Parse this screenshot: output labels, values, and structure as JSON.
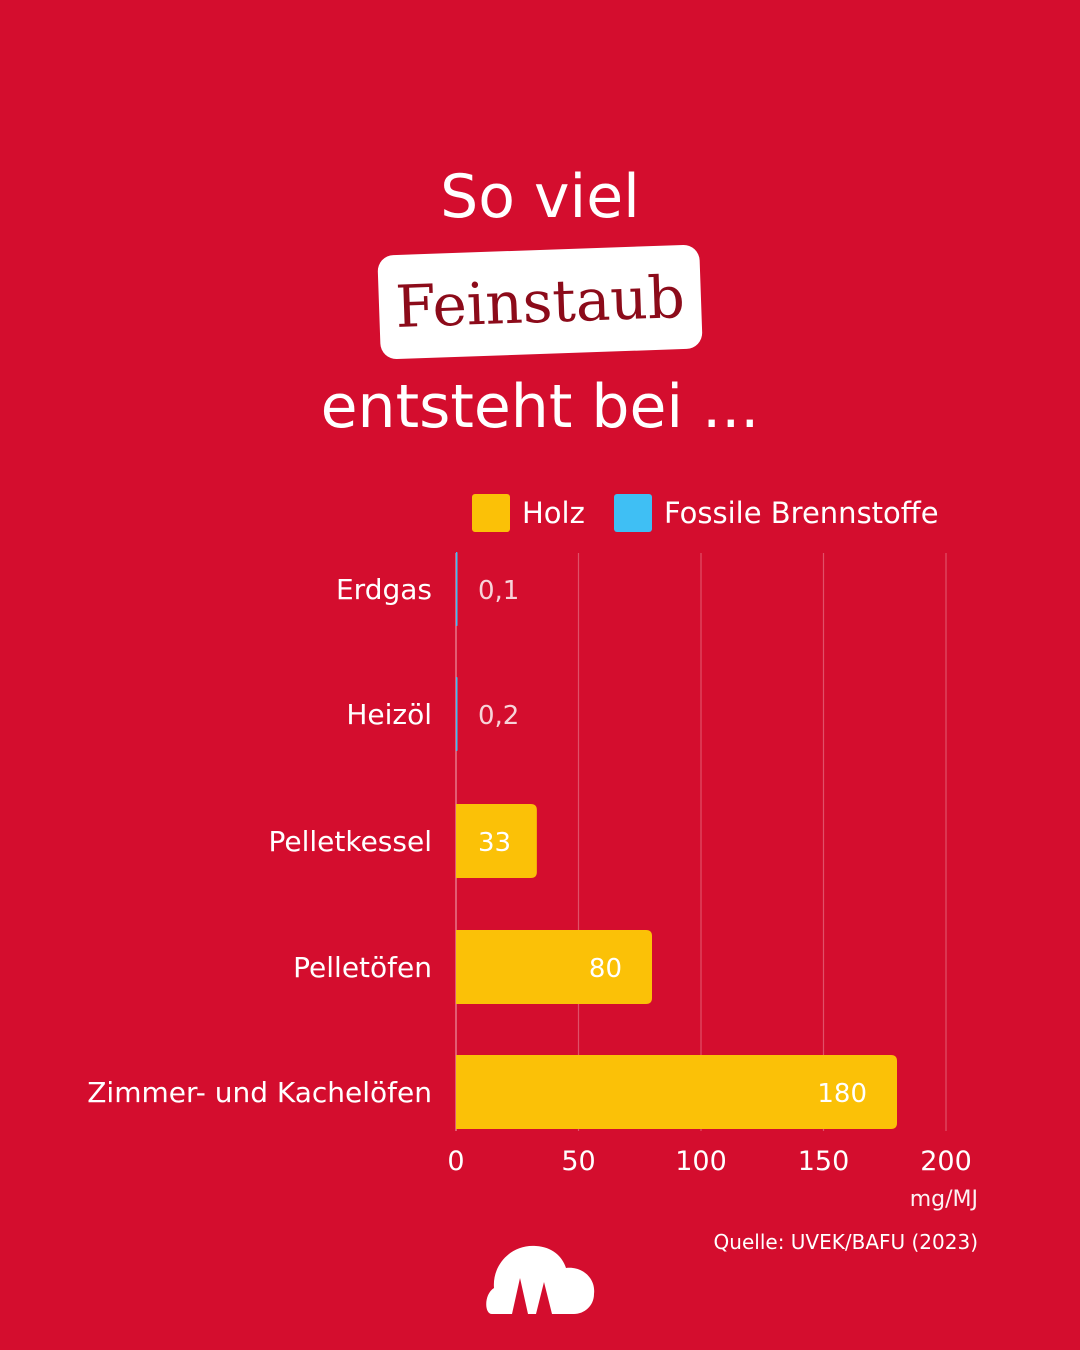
{
  "headline": {
    "line1": "So viel",
    "highlight": "Feinstaub",
    "line3": "entsteht bei ..."
  },
  "colors": {
    "background": "#d40d2e",
    "holz": "#fbc107",
    "fossil": "#3fbff4",
    "highlight_text": "#8c0b1a"
  },
  "chart_data": {
    "type": "bar",
    "orientation": "horizontal",
    "categories": [
      "Erdgas",
      "Heizöl",
      "Pelletkessel",
      "Pelletöfen",
      "Zimmer- und Kachelöfen"
    ],
    "series": [
      {
        "name": "Holz",
        "values": [
          null,
          null,
          33,
          80,
          180
        ]
      },
      {
        "name": "Fossile Brennstoffe",
        "values": [
          0.1,
          0.2,
          null,
          null,
          null
        ]
      }
    ],
    "value_labels": [
      "0,1",
      "0,2",
      "33",
      "80",
      "180"
    ],
    "xlim": [
      0,
      200
    ],
    "xticks": [
      0,
      50,
      100,
      150,
      200
    ],
    "xlabel": "mg/MJ",
    "grid": true,
    "legend_position": "top"
  },
  "source": "Quelle: UVEK/BAFU (2023)",
  "logo_icon": "cloud-logo-icon"
}
